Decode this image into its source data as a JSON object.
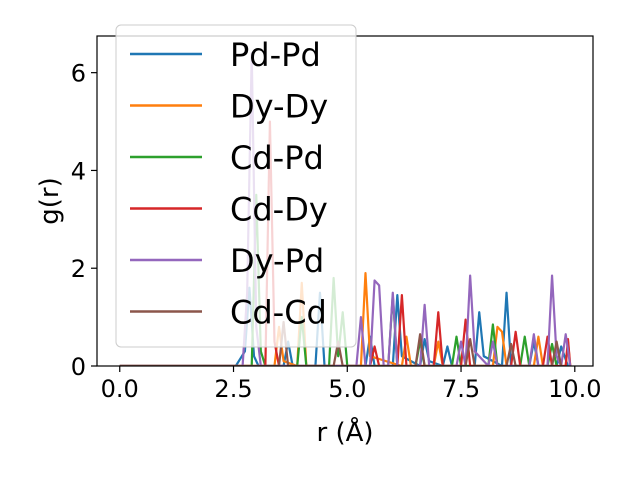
{
  "chart_data": {
    "type": "line",
    "xlabel": "r (Å)",
    "ylabel": "g(r)",
    "xlim": [
      -0.5,
      10.4
    ],
    "ylim": [
      0,
      6.75
    ],
    "xticks": [
      0.0,
      2.5,
      5.0,
      7.5,
      10.0
    ],
    "xtick_labels": [
      "0.0",
      "2.5",
      "5.0",
      "7.5",
      "10.0"
    ],
    "yticks": [
      0,
      2,
      4,
      6
    ],
    "ytick_labels": [
      "0",
      "2",
      "4",
      "6"
    ],
    "grid": false,
    "legend_placement": "upper-left",
    "series": [
      {
        "name": "Pd-Pd",
        "color": "#1f77b4",
        "points": [
          [
            0,
            0
          ],
          [
            2.55,
            0
          ],
          [
            2.75,
            0.3
          ],
          [
            2.85,
            1.6
          ],
          [
            2.95,
            0.2
          ],
          [
            3.05,
            0
          ],
          [
            3.6,
            0
          ],
          [
            3.7,
            0.5
          ],
          [
            3.8,
            0
          ],
          [
            4.3,
            0
          ],
          [
            4.4,
            1.5
          ],
          [
            4.5,
            0
          ],
          [
            5.4,
            0
          ],
          [
            5.5,
            0.6
          ],
          [
            5.6,
            0
          ],
          [
            6.0,
            0
          ],
          [
            6.1,
            1.45
          ],
          [
            6.2,
            0.2
          ],
          [
            6.6,
            0
          ],
          [
            6.7,
            0.55
          ],
          [
            6.8,
            0.1
          ],
          [
            7.1,
            0
          ],
          [
            7.2,
            0.4
          ],
          [
            7.3,
            0
          ],
          [
            7.8,
            0
          ],
          [
            7.9,
            1.1
          ],
          [
            8.0,
            0.2
          ],
          [
            8.4,
            0
          ],
          [
            8.5,
            1.5
          ],
          [
            8.6,
            0
          ],
          [
            9.0,
            0
          ],
          [
            9.1,
            0.5
          ],
          [
            9.2,
            0
          ],
          [
            9.6,
            0
          ],
          [
            9.7,
            0.4
          ],
          [
            9.85,
            0
          ]
        ]
      },
      {
        "name": "Dy-Dy",
        "color": "#ff7f0e",
        "points": [
          [
            0,
            0
          ],
          [
            3.4,
            0
          ],
          [
            3.5,
            0.8
          ],
          [
            3.6,
            0.1
          ],
          [
            3.9,
            0
          ],
          [
            4.0,
            1.7
          ],
          [
            4.1,
            0
          ],
          [
            5.3,
            0
          ],
          [
            5.4,
            1.9
          ],
          [
            5.5,
            0.2
          ],
          [
            6.2,
            0
          ],
          [
            6.3,
            0.6
          ],
          [
            6.4,
            0
          ],
          [
            6.9,
            0
          ],
          [
            7.0,
            0.5
          ],
          [
            7.1,
            0
          ],
          [
            8.2,
            0
          ],
          [
            8.3,
            0.8
          ],
          [
            8.4,
            0.7
          ],
          [
            8.5,
            0
          ],
          [
            9.1,
            0
          ],
          [
            9.2,
            0.6
          ],
          [
            9.3,
            0
          ],
          [
            9.8,
            0
          ],
          [
            9.85,
            0.5
          ],
          [
            9.9,
            0
          ]
        ]
      },
      {
        "name": "Cd-Pd",
        "color": "#2ca02c",
        "points": [
          [
            0,
            0
          ],
          [
            2.9,
            0
          ],
          [
            3.0,
            3.5
          ],
          [
            3.1,
            0.3
          ],
          [
            3.2,
            0
          ],
          [
            3.9,
            0
          ],
          [
            4.0,
            1.0
          ],
          [
            4.1,
            0
          ],
          [
            4.6,
            0
          ],
          [
            4.7,
            1.8
          ],
          [
            4.8,
            0.2
          ],
          [
            4.9,
            1.1
          ],
          [
            5.0,
            0
          ],
          [
            5.9,
            0
          ],
          [
            6.0,
            1.45
          ],
          [
            6.1,
            0
          ],
          [
            6.5,
            0
          ],
          [
            6.6,
            0.5
          ],
          [
            6.7,
            0
          ],
          [
            7.3,
            0
          ],
          [
            7.4,
            0.6
          ],
          [
            7.5,
            0
          ],
          [
            8.1,
            0
          ],
          [
            8.2,
            0.85
          ],
          [
            8.3,
            0
          ],
          [
            8.8,
            0
          ],
          [
            8.9,
            0.6
          ],
          [
            9.0,
            0
          ],
          [
            9.4,
            0
          ],
          [
            9.5,
            0.45
          ],
          [
            9.6,
            0
          ]
        ]
      },
      {
        "name": "Cd-Dy",
        "color": "#d62728",
        "points": [
          [
            0,
            0
          ],
          [
            3.2,
            0
          ],
          [
            3.3,
            5.0
          ],
          [
            3.4,
            0.5
          ],
          [
            3.5,
            0
          ],
          [
            5.5,
            0
          ],
          [
            5.6,
            0.4
          ],
          [
            5.7,
            0
          ],
          [
            6.1,
            0
          ],
          [
            6.2,
            1.45
          ],
          [
            6.3,
            0
          ],
          [
            6.9,
            0
          ],
          [
            7.0,
            1.1
          ],
          [
            7.1,
            0
          ],
          [
            7.5,
            0
          ],
          [
            7.6,
            0.95
          ],
          [
            7.7,
            0
          ],
          [
            8.6,
            0
          ],
          [
            8.7,
            0.7
          ],
          [
            8.8,
            0
          ],
          [
            9.3,
            0
          ],
          [
            9.4,
            0.6
          ],
          [
            9.5,
            0
          ],
          [
            9.8,
            0
          ],
          [
            9.85,
            0.55
          ],
          [
            9.9,
            0
          ]
        ]
      },
      {
        "name": "Dy-Pd",
        "color": "#9467bd",
        "points": [
          [
            0,
            0
          ],
          [
            2.7,
            0
          ],
          [
            2.8,
            1.5
          ],
          [
            2.9,
            6.4
          ],
          [
            3.0,
            0.8
          ],
          [
            3.1,
            0
          ],
          [
            5.2,
            0
          ],
          [
            5.3,
            1.0
          ],
          [
            5.4,
            0
          ],
          [
            5.5,
            0
          ],
          [
            5.6,
            1.75
          ],
          [
            5.7,
            1.65
          ],
          [
            5.8,
            0
          ],
          [
            5.9,
            0
          ],
          [
            6.0,
            1.5
          ],
          [
            6.1,
            0
          ],
          [
            6.6,
            0
          ],
          [
            6.7,
            1.25
          ],
          [
            6.8,
            0
          ],
          [
            7.4,
            0
          ],
          [
            7.5,
            0.5
          ],
          [
            7.6,
            0
          ],
          [
            7.7,
            1.85
          ],
          [
            7.8,
            0.3
          ],
          [
            8.1,
            0
          ],
          [
            8.2,
            0.5
          ],
          [
            8.3,
            0
          ],
          [
            9.0,
            0
          ],
          [
            9.1,
            0.65
          ],
          [
            9.2,
            0
          ],
          [
            9.4,
            0
          ],
          [
            9.5,
            1.85
          ],
          [
            9.6,
            0.2
          ],
          [
            9.7,
            0
          ],
          [
            9.8,
            0.65
          ],
          [
            9.9,
            0
          ]
        ]
      },
      {
        "name": "Cd-Cd",
        "color": "#8c564b",
        "points": [
          [
            0,
            0
          ],
          [
            3.5,
            0
          ],
          [
            3.6,
            0.9
          ],
          [
            3.7,
            0
          ],
          [
            4.7,
            0
          ],
          [
            4.8,
            0.5
          ],
          [
            4.9,
            0
          ],
          [
            6.5,
            0
          ],
          [
            6.6,
            0.65
          ],
          [
            6.7,
            0
          ],
          [
            7.6,
            0
          ],
          [
            7.7,
            0.55
          ],
          [
            7.8,
            0
          ],
          [
            8.5,
            0
          ],
          [
            8.6,
            0.45
          ],
          [
            8.7,
            0
          ],
          [
            9.5,
            0
          ],
          [
            9.6,
            0.5
          ],
          [
            9.7,
            0
          ]
        ]
      }
    ]
  }
}
